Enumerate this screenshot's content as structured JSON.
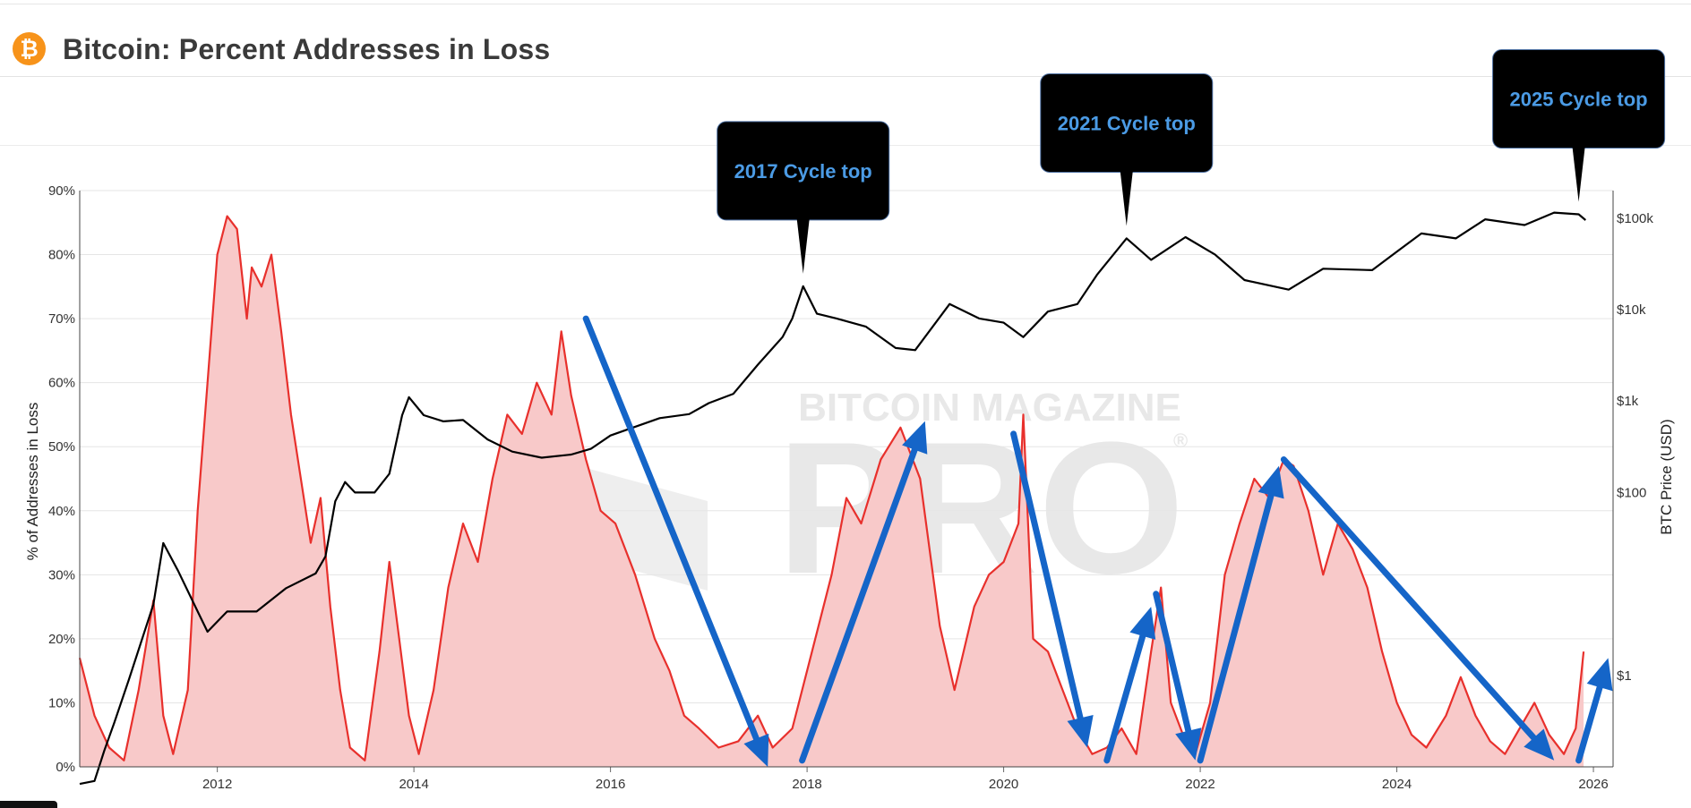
{
  "header": {
    "title": "Bitcoin: Percent Addresses in Loss",
    "logo_glyph": "₿",
    "logo_color": "#f7931a"
  },
  "watermark": {
    "line1": "BITCOIN MAGAZINE",
    "line2": "PRO",
    "mark": "®"
  },
  "chart_data": {
    "type": "area+line",
    "title": "Bitcoin: Percent Addresses in Loss",
    "ylabel_left": "% of Addresses in Loss",
    "ylabel_right": "BTC Price (USD)",
    "xlim": [
      2010.6,
      2026.2
    ],
    "ylim_left": [
      0,
      90
    ],
    "ylim_right_log": [
      0.1,
      200000
    ],
    "left_ticks": [
      "0%",
      "10%",
      "20%",
      "30%",
      "40%",
      "50%",
      "60%",
      "70%",
      "80%",
      "90%"
    ],
    "right_ticks": [
      {
        "value": 1,
        "label": "$1"
      },
      {
        "value": 100,
        "label": "$100"
      },
      {
        "value": 1000,
        "label": "$1k"
      },
      {
        "value": 10000,
        "label": "$10k"
      },
      {
        "value": 100000,
        "label": "$100k"
      }
    ],
    "x_ticks": [
      "2012",
      "2014",
      "2016",
      "2018",
      "2020",
      "2022",
      "2024",
      "2026"
    ],
    "colors": {
      "loss_line": "#e8302c",
      "loss_fill": "#f8c9c9",
      "price_line": "#000000",
      "arrow": "#1565c8",
      "callout_bg": "#000000",
      "callout_text": "#4b9be5"
    },
    "series": [
      {
        "name": "Percent Addresses in Loss",
        "unit": "%",
        "points": [
          [
            2010.6,
            17
          ],
          [
            2010.75,
            8
          ],
          [
            2010.9,
            3
          ],
          [
            2011.05,
            1
          ],
          [
            2011.2,
            12
          ],
          [
            2011.35,
            26
          ],
          [
            2011.45,
            8
          ],
          [
            2011.55,
            2
          ],
          [
            2011.7,
            12
          ],
          [
            2011.8,
            40
          ],
          [
            2011.9,
            60
          ],
          [
            2012.0,
            80
          ],
          [
            2012.1,
            86
          ],
          [
            2012.2,
            84
          ],
          [
            2012.3,
            70
          ],
          [
            2012.35,
            78
          ],
          [
            2012.45,
            75
          ],
          [
            2012.55,
            80
          ],
          [
            2012.65,
            68
          ],
          [
            2012.75,
            55
          ],
          [
            2012.85,
            45
          ],
          [
            2012.95,
            35
          ],
          [
            2013.05,
            42
          ],
          [
            2013.15,
            25
          ],
          [
            2013.25,
            12
          ],
          [
            2013.35,
            3
          ],
          [
            2013.5,
            1
          ],
          [
            2013.65,
            18
          ],
          [
            2013.75,
            32
          ],
          [
            2013.85,
            20
          ],
          [
            2013.95,
            8
          ],
          [
            2014.05,
            2
          ],
          [
            2014.2,
            12
          ],
          [
            2014.35,
            28
          ],
          [
            2014.5,
            38
          ],
          [
            2014.65,
            32
          ],
          [
            2014.8,
            45
          ],
          [
            2014.95,
            55
          ],
          [
            2015.1,
            52
          ],
          [
            2015.25,
            60
          ],
          [
            2015.4,
            55
          ],
          [
            2015.5,
            68
          ],
          [
            2015.6,
            58
          ],
          [
            2015.75,
            48
          ],
          [
            2015.9,
            40
          ],
          [
            2016.05,
            38
          ],
          [
            2016.25,
            30
          ],
          [
            2016.45,
            20
          ],
          [
            2016.6,
            15
          ],
          [
            2016.75,
            8
          ],
          [
            2016.9,
            6
          ],
          [
            2017.1,
            3
          ],
          [
            2017.3,
            4
          ],
          [
            2017.5,
            8
          ],
          [
            2017.65,
            3
          ],
          [
            2017.85,
            6
          ],
          [
            2018.05,
            18
          ],
          [
            2018.25,
            30
          ],
          [
            2018.4,
            42
          ],
          [
            2018.55,
            38
          ],
          [
            2018.75,
            48
          ],
          [
            2018.95,
            53
          ],
          [
            2019.15,
            45
          ],
          [
            2019.35,
            22
          ],
          [
            2019.5,
            12
          ],
          [
            2019.7,
            25
          ],
          [
            2019.85,
            30
          ],
          [
            2020.0,
            32
          ],
          [
            2020.15,
            38
          ],
          [
            2020.2,
            55
          ],
          [
            2020.3,
            20
          ],
          [
            2020.45,
            18
          ],
          [
            2020.6,
            12
          ],
          [
            2020.75,
            6
          ],
          [
            2020.9,
            2
          ],
          [
            2021.05,
            3
          ],
          [
            2021.2,
            6
          ],
          [
            2021.35,
            2
          ],
          [
            2021.5,
            18
          ],
          [
            2021.6,
            28
          ],
          [
            2021.7,
            10
          ],
          [
            2021.85,
            4
          ],
          [
            2021.95,
            2
          ],
          [
            2022.1,
            10
          ],
          [
            2022.25,
            30
          ],
          [
            2022.4,
            38
          ],
          [
            2022.55,
            45
          ],
          [
            2022.7,
            42
          ],
          [
            2022.85,
            48
          ],
          [
            2022.95,
            47
          ],
          [
            2023.1,
            40
          ],
          [
            2023.25,
            30
          ],
          [
            2023.4,
            38
          ],
          [
            2023.55,
            34
          ],
          [
            2023.7,
            28
          ],
          [
            2023.85,
            18
          ],
          [
            2024.0,
            10
          ],
          [
            2024.15,
            5
          ],
          [
            2024.3,
            3
          ],
          [
            2024.5,
            8
          ],
          [
            2024.65,
            14
          ],
          [
            2024.8,
            8
          ],
          [
            2024.95,
            4
          ],
          [
            2025.1,
            2
          ],
          [
            2025.25,
            6
          ],
          [
            2025.4,
            10
          ],
          [
            2025.55,
            5
          ],
          [
            2025.7,
            2
          ],
          [
            2025.82,
            6
          ],
          [
            2025.9,
            18
          ]
        ]
      },
      {
        "name": "BTC Price",
        "unit": "USD",
        "points": [
          [
            2010.6,
            0.065
          ],
          [
            2010.75,
            0.07
          ],
          [
            2010.85,
            0.15
          ],
          [
            2010.95,
            0.3
          ],
          [
            2011.1,
            0.9
          ],
          [
            2011.35,
            6
          ],
          [
            2011.45,
            28
          ],
          [
            2011.6,
            14
          ],
          [
            2011.8,
            5
          ],
          [
            2011.9,
            3
          ],
          [
            2012.1,
            5
          ],
          [
            2012.4,
            5
          ],
          [
            2012.7,
            9
          ],
          [
            2013.0,
            13
          ],
          [
            2013.1,
            20
          ],
          [
            2013.2,
            80
          ],
          [
            2013.3,
            130
          ],
          [
            2013.4,
            100
          ],
          [
            2013.6,
            100
          ],
          [
            2013.75,
            160
          ],
          [
            2013.88,
            700
          ],
          [
            2013.95,
            1100
          ],
          [
            2014.1,
            700
          ],
          [
            2014.3,
            600
          ],
          [
            2014.5,
            620
          ],
          [
            2014.75,
            380
          ],
          [
            2015.0,
            280
          ],
          [
            2015.3,
            240
          ],
          [
            2015.6,
            260
          ],
          [
            2015.8,
            300
          ],
          [
            2016.0,
            420
          ],
          [
            2016.5,
            650
          ],
          [
            2016.8,
            720
          ],
          [
            2017.0,
            950
          ],
          [
            2017.25,
            1200
          ],
          [
            2017.5,
            2500
          ],
          [
            2017.75,
            5000
          ],
          [
            2017.85,
            8000
          ],
          [
            2017.96,
            18000
          ],
          [
            2018.1,
            9000
          ],
          [
            2018.3,
            8000
          ],
          [
            2018.6,
            6500
          ],
          [
            2018.9,
            3800
          ],
          [
            2019.1,
            3600
          ],
          [
            2019.45,
            11500
          ],
          [
            2019.75,
            8000
          ],
          [
            2020.0,
            7200
          ],
          [
            2020.2,
            5000
          ],
          [
            2020.45,
            9500
          ],
          [
            2020.75,
            11500
          ],
          [
            2020.95,
            24000
          ],
          [
            2021.25,
            60000
          ],
          [
            2021.5,
            35000
          ],
          [
            2021.85,
            62000
          ],
          [
            2022.15,
            40000
          ],
          [
            2022.45,
            21000
          ],
          [
            2022.9,
            16500
          ],
          [
            2023.25,
            28000
          ],
          [
            2023.75,
            27000
          ],
          [
            2024.0,
            43000
          ],
          [
            2024.25,
            68000
          ],
          [
            2024.6,
            60000
          ],
          [
            2024.9,
            97000
          ],
          [
            2025.3,
            84000
          ],
          [
            2025.6,
            115000
          ],
          [
            2025.85,
            110000
          ],
          [
            2025.92,
            95000
          ]
        ]
      }
    ],
    "annotations": [
      {
        "text": "2017 Cycle top",
        "x": 2017.96
      },
      {
        "text": "2021 Cycle top",
        "x": 2021.25
      },
      {
        "text": "2025 Cycle top",
        "x": 2025.85
      }
    ],
    "trend_arrows": [
      {
        "from": [
          2015.75,
          70
        ],
        "to": [
          2017.6,
          0
        ]
      },
      {
        "from": [
          2017.95,
          1
        ],
        "to": [
          2019.2,
          54
        ]
      },
      {
        "from": [
          2020.1,
          52
        ],
        "to": [
          2020.85,
          3
        ]
      },
      {
        "from": [
          2021.05,
          1
        ],
        "to": [
          2021.5,
          25
        ]
      },
      {
        "from": [
          2021.55,
          27
        ],
        "to": [
          2021.95,
          1
        ]
      },
      {
        "from": [
          2022.0,
          1
        ],
        "to": [
          2022.8,
          47
        ]
      },
      {
        "from": [
          2022.85,
          48
        ],
        "to": [
          2025.6,
          1
        ]
      },
      {
        "from": [
          2025.85,
          1
        ],
        "to": [
          2026.15,
          17
        ]
      }
    ]
  }
}
